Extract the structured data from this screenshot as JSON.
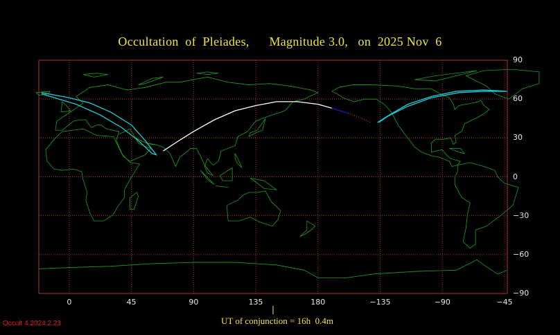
{
  "title": "Occultation  of  Pleiades,      Magnitude 3.0,   on  2025 Nov  6",
  "footer": "UT of conjunction = 16h  0.4m",
  "version": "Occult 4.2024.2.23",
  "map": {
    "projection": "equirectangular",
    "center_longitude": 160,
    "lon_range": [
      -22,
      317
    ],
    "lat_range": [
      -90,
      90
    ],
    "grid_lons": [
      0,
      45,
      90,
      135,
      180,
      225,
      270,
      315
    ],
    "grid_lats": [
      -60,
      -30,
      0,
      30,
      60
    ],
    "lon_tick_labels": [
      {
        "lon": 0,
        "text": "0"
      },
      {
        "lon": 45,
        "text": "45"
      },
      {
        "lon": 90,
        "text": "90"
      },
      {
        "lon": 135,
        "text": "135"
      },
      {
        "lon": 180,
        "text": "180"
      },
      {
        "lon": 225,
        "text": "−135"
      },
      {
        "lon": 270,
        "text": "−90"
      },
      {
        "lon": 315,
        "text": "−45"
      }
    ],
    "lat_tick_labels": [
      {
        "lat": 90,
        "text": "90"
      },
      {
        "lat": 60,
        "text": "60"
      },
      {
        "lat": 30,
        "text": "30"
      },
      {
        "lat": 0,
        "text": "0"
      },
      {
        "lat": -30,
        "text": "−30"
      },
      {
        "lat": -60,
        "text": "−60"
      },
      {
        "lat": -90,
        "text": "−90"
      }
    ]
  },
  "colors": {
    "background": "#000000",
    "grid": "#b03030",
    "coast": "#1fa01f",
    "title": "#f0e640",
    "ticks": "#e6e6e6",
    "path_day": "#ffffff",
    "path_limits": "#20c8d8",
    "path_twilight": "#1020c0",
    "path_below_horizon": "#e02020",
    "version": "#e02020"
  },
  "occultation_tracks": {
    "central_path": [
      [
        68,
        20
      ],
      [
        78,
        27
      ],
      [
        90,
        35
      ],
      [
        105,
        44
      ],
      [
        120,
        51
      ],
      [
        135,
        55
      ],
      [
        150,
        58
      ],
      [
        165,
        58
      ],
      [
        180,
        56
      ],
      [
        190,
        53
      ]
    ],
    "twilight_segment": [
      [
        190,
        53
      ],
      [
        196,
        51
      ],
      [
        202,
        49
      ]
    ],
    "below_horizon_segment": [
      [
        202,
        49
      ],
      [
        210,
        46
      ],
      [
        218,
        42
      ]
    ],
    "west_limit_loop": [
      [
        -20,
        65
      ],
      [
        0,
        61
      ],
      [
        15,
        57
      ],
      [
        30,
        50
      ],
      [
        45,
        40
      ],
      [
        55,
        28
      ],
      [
        63,
        17
      ],
      [
        60,
        18
      ],
      [
        50,
        28
      ],
      [
        38,
        38
      ],
      [
        22,
        48
      ],
      [
        5,
        56
      ],
      [
        -20,
        64
      ]
    ],
    "east_limit_loop": [
      [
        223,
        42
      ],
      [
        232,
        48
      ],
      [
        245,
        56
      ],
      [
        262,
        62
      ],
      [
        280,
        66
      ],
      [
        300,
        67
      ],
      [
        317,
        66
      ],
      [
        300,
        66
      ],
      [
        282,
        65
      ],
      [
        262,
        61
      ],
      [
        244,
        54
      ],
      [
        231,
        47
      ],
      [
        224,
        42
      ]
    ]
  }
}
